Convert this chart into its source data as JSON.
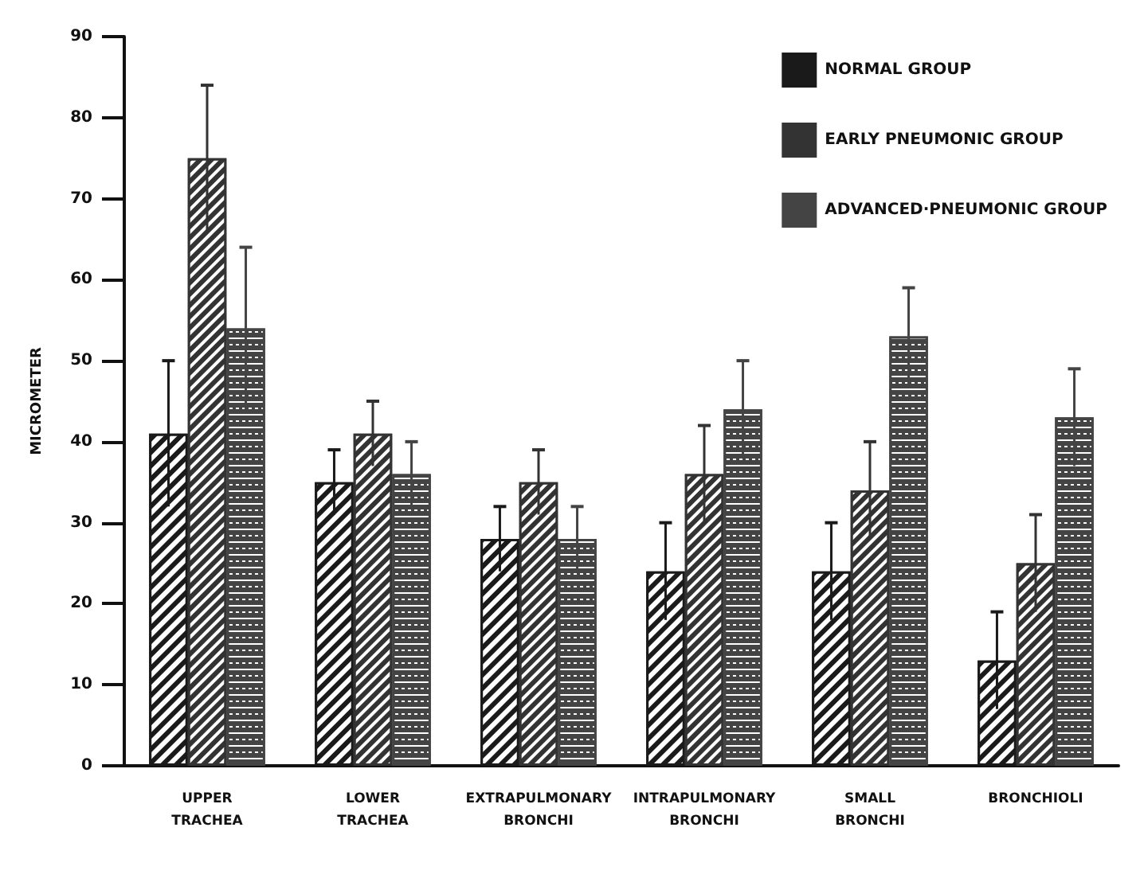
{
  "chart_data": {
    "type": "bar",
    "ylabel": "MICROMETER",
    "categories": [
      "UPPER\nTRACHEA",
      "LOWER\nTRACHEA",
      "EXTRAPULMONARY\nBRONCHI",
      "INTRAPULMONARY\nBRONCHI",
      "SMALL\nBRONCHI",
      "BRONCHIOLI"
    ],
    "series": [
      {
        "name": "NORMAL GROUP",
        "color": "#1a1a1a",
        "values": [
          41,
          35,
          28,
          24,
          24,
          13
        ],
        "errors": [
          9,
          4,
          4,
          6,
          6,
          6
        ]
      },
      {
        "name": "EARLY PNEUMONIC GROUP",
        "color": "#333333",
        "values": [
          75,
          41,
          35,
          36,
          34,
          25
        ],
        "errors": [
          9,
          4,
          4,
          6,
          6,
          6
        ]
      },
      {
        "name": "ADVANCED·PNEUMONIC GROUP",
        "color": "#444444",
        "values": [
          54,
          36,
          28,
          44,
          53,
          43
        ],
        "errors": [
          10,
          4,
          4,
          6,
          6,
          6
        ]
      }
    ],
    "ylim": [
      0,
      90
    ],
    "yticks": [
      0,
      10,
      20,
      30,
      40,
      50,
      60,
      70,
      80,
      90
    ],
    "grid": false,
    "legend": "top right"
  }
}
